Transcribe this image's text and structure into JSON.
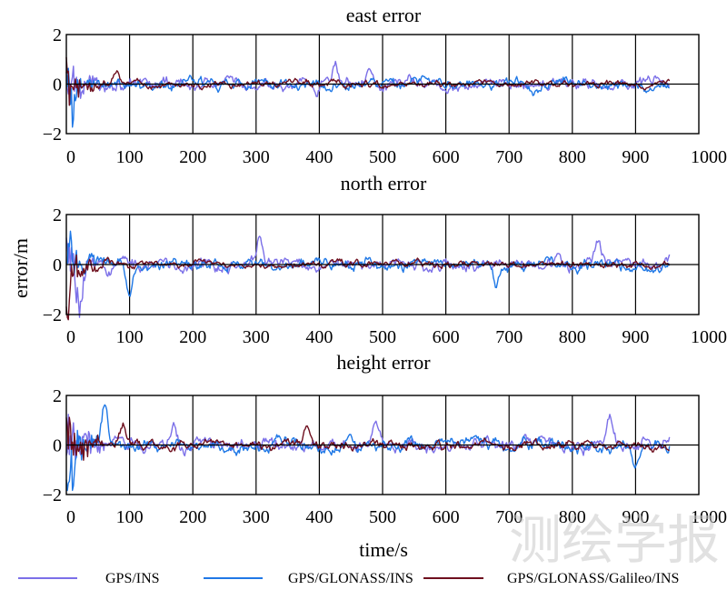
{
  "chart_data": {
    "type": "line",
    "ylabel": "error/m",
    "xlabel": "time/s",
    "legend_position": "bottom",
    "series_names": [
      "GPS/INS",
      "GPS/GLONASS/INS",
      "GPS/GLONASS/Galileo/INS"
    ],
    "colors": {
      "GPS/INS": "#7b6fe8",
      "GPS/GLONASS/INS": "#1f78e6",
      "GPS/GLONASS/Galileo/INS": "#6e0f1e"
    },
    "x_ticks": [
      "0",
      "100",
      "200",
      "300",
      "400",
      "500",
      "600",
      "700",
      "800",
      "900",
      "1000"
    ],
    "y_ticks": [
      "2",
      "0",
      "−2"
    ],
    "xlim": [
      0,
      1000
    ],
    "ylim": [
      -2,
      2
    ],
    "x_end": 955,
    "panels": [
      {
        "title": "east error",
        "noise_amplitude": [
          0.28,
          0.26,
          0.16
        ],
        "features": [
          {
            "series": 0,
            "x": 425,
            "y": 0.8
          },
          {
            "series": 0,
            "x": 480,
            "y": 0.55
          },
          {
            "series": 0,
            "x": 395,
            "y": -0.5
          },
          {
            "series": 1,
            "x": 10,
            "y": -1.1
          },
          {
            "series": 1,
            "x": 740,
            "y": -0.45
          },
          {
            "series": 2,
            "x": 80,
            "y": 0.5
          }
        ]
      },
      {
        "title": "north error",
        "noise_amplitude": [
          0.3,
          0.26,
          0.17
        ],
        "features": [
          {
            "series": 0,
            "x": 305,
            "y": 1.1
          },
          {
            "series": 0,
            "x": 20,
            "y": -1.8
          },
          {
            "series": 0,
            "x": 840,
            "y": 0.7
          },
          {
            "series": 1,
            "x": 5,
            "y": 1.3
          },
          {
            "series": 1,
            "x": 100,
            "y": -1.25
          },
          {
            "series": 1,
            "x": 680,
            "y": -0.9
          },
          {
            "series": 2,
            "x": 2,
            "y": -1.6
          }
        ]
      },
      {
        "title": "height error",
        "noise_amplitude": [
          0.3,
          0.3,
          0.22
        ],
        "features": [
          {
            "series": 0,
            "x": 490,
            "y": 1.0
          },
          {
            "series": 0,
            "x": 170,
            "y": 1.0
          },
          {
            "series": 0,
            "x": 860,
            "y": 0.9
          },
          {
            "series": 1,
            "x": 3,
            "y": -2.1
          },
          {
            "series": 1,
            "x": 60,
            "y": 1.5
          },
          {
            "series": 1,
            "x": 900,
            "y": -0.7
          },
          {
            "series": 2,
            "x": 380,
            "y": 0.85
          },
          {
            "series": 2,
            "x": 90,
            "y": 0.6
          }
        ]
      }
    ]
  },
  "watermark": "测绘学报"
}
